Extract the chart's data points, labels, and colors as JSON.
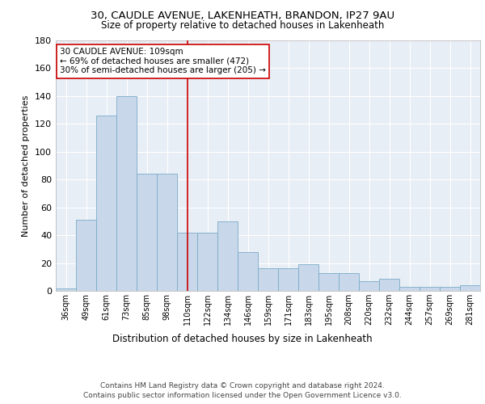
{
  "title_line1": "30, CAUDLE AVENUE, LAKENHEATH, BRANDON, IP27 9AU",
  "title_line2": "Size of property relative to detached houses in Lakenheath",
  "xlabel": "Distribution of detached houses by size in Lakenheath",
  "ylabel": "Number of detached properties",
  "categories": [
    "36sqm",
    "49sqm",
    "61sqm",
    "73sqm",
    "85sqm",
    "98sqm",
    "110sqm",
    "122sqm",
    "134sqm",
    "146sqm",
    "159sqm",
    "171sqm",
    "183sqm",
    "195sqm",
    "208sqm",
    "220sqm",
    "232sqm",
    "244sqm",
    "257sqm",
    "269sqm",
    "281sqm"
  ],
  "bar_values": [
    2,
    51,
    126,
    140,
    84,
    84,
    42,
    42,
    50,
    28,
    16,
    16,
    19,
    13,
    13,
    7,
    9,
    3,
    3,
    3,
    4
  ],
  "bar_color": "#c8d8ea",
  "bar_edge_color": "#7aaac8",
  "vline_index": 6,
  "vline_color": "#cc0000",
  "annotation_text": "30 CAUDLE AVENUE: 109sqm\n← 69% of detached houses are smaller (472)\n30% of semi-detached houses are larger (205) →",
  "annotation_box_color": "white",
  "annotation_box_edge": "#cc0000",
  "ylim": [
    0,
    180
  ],
  "yticks": [
    0,
    20,
    40,
    60,
    80,
    100,
    120,
    140,
    160,
    180
  ],
  "footer": "Contains HM Land Registry data © Crown copyright and database right 2024.\nContains public sector information licensed under the Open Government Licence v3.0.",
  "plot_bg_color": "#e8eef5"
}
